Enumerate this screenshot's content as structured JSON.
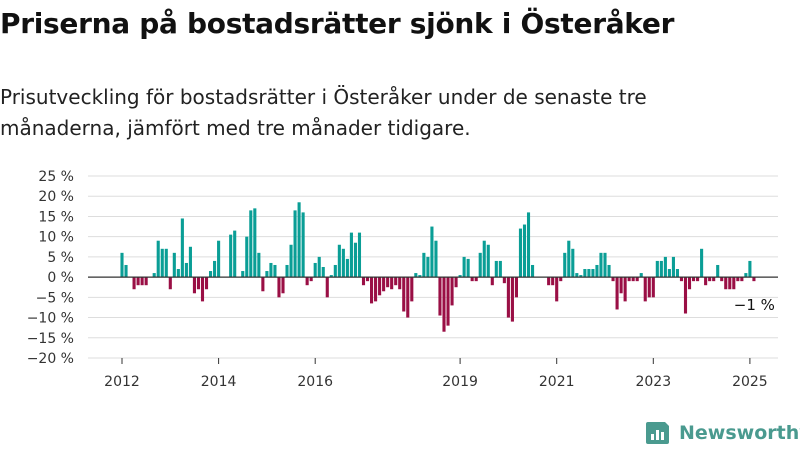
{
  "header": {
    "title": "Priserna på bostadsrätter sjönk i Österåker",
    "subtitle": "Prisutveckling för bostadsrätter i Österåker under de senaste tre månaderna, jämfört med tre månader tidigare."
  },
  "brand": {
    "name": "Newsworthy",
    "color": "#4a9a8f"
  },
  "colors": {
    "positive": "#0a9e96",
    "negative": "#9a0f45"
  },
  "chart_data": {
    "type": "bar",
    "title": "",
    "xlabel": "",
    "ylabel": "",
    "ylim": [
      -20,
      25
    ],
    "yticks": [
      25,
      20,
      15,
      10,
      5,
      0,
      -5,
      -10,
      -15,
      -20
    ],
    "ytick_labels": [
      "25 %",
      "20 %",
      "15 %",
      "10 %",
      "5 %",
      "0 %",
      "−5 %",
      "−10 %",
      "−15 %",
      "−20 %"
    ],
    "xticks": [
      "2012",
      "2014",
      "2016",
      "2019",
      "2021",
      "2023",
      "2025"
    ],
    "grid": true,
    "x_start": "2012-01",
    "x_step": "month",
    "values": [
      6,
      3,
      0,
      -3,
      -2,
      -2,
      -2,
      0,
      1,
      9,
      7,
      7,
      -3,
      6,
      2,
      14.5,
      3.5,
      7.5,
      -4,
      -3,
      -6,
      -3,
      1.5,
      4,
      9,
      0,
      0,
      10.5,
      11.5,
      0,
      1.5,
      10,
      16.5,
      17,
      6,
      -3.5,
      1.5,
      3.5,
      3,
      -5,
      -4,
      3,
      8,
      16.5,
      18.5,
      16,
      -2,
      -1,
      3.5,
      5,
      2.5,
      -5,
      0.5,
      3,
      8,
      7,
      4.5,
      11,
      8.5,
      11,
      -2,
      -1,
      -6.5,
      -6,
      -4.5,
      -3.5,
      -2.5,
      -3,
      -2,
      -3,
      -8.5,
      -10,
      -6,
      1,
      0.5,
      6,
      5,
      12.5,
      9,
      -9.5,
      -13.5,
      -12,
      -7,
      -2.5,
      0.5,
      5,
      4.5,
      -1,
      -1,
      6,
      9,
      8,
      -2,
      4,
      4,
      -1.5,
      -10,
      -11,
      -5,
      12,
      13,
      16,
      3,
      0,
      0,
      0,
      -2,
      -2,
      -6,
      -1,
      6,
      9,
      7,
      1,
      0.5,
      2,
      2,
      2,
      3,
      6,
      6,
      3,
      -1,
      -8,
      -4,
      -6,
      -1,
      -1,
      -1,
      1,
      -6,
      -5,
      -5,
      4,
      4,
      5,
      2,
      5,
      2,
      -1,
      -9,
      -3,
      -1,
      -1,
      7,
      -2,
      -1,
      -1,
      3,
      -1,
      -3,
      -3,
      -3,
      -1,
      -1,
      1,
      4,
      -1
    ],
    "annotation": {
      "text": "−1 %"
    }
  }
}
